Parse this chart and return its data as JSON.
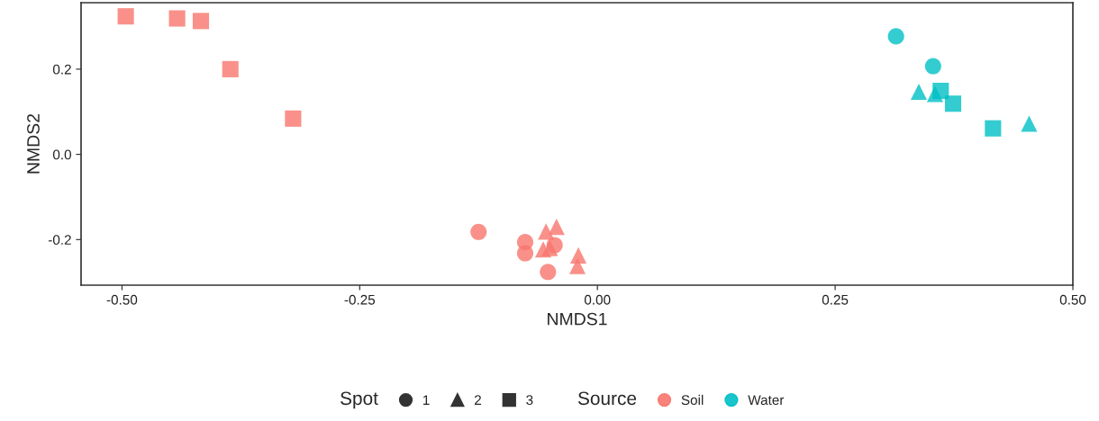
{
  "chart_data": {
    "type": "scatter",
    "xlabel": "NMDS1",
    "ylabel": "NMDS2",
    "xlim": [
      -0.543,
      0.5
    ],
    "ylim": [
      -0.307,
      0.356
    ],
    "xticks": [
      {
        "value": -0.5,
        "label": "-0.50"
      },
      {
        "value": -0.25,
        "label": "-0.25"
      },
      {
        "value": 0,
        "label": "0.00"
      },
      {
        "value": 0.25,
        "label": "0.25"
      },
      {
        "value": 0.5,
        "label": "0.50"
      }
    ],
    "yticks": [
      {
        "value": -0.2,
        "label": "-0.2"
      },
      {
        "value": 0,
        "label": "0.0"
      },
      {
        "value": 0.2,
        "label": "0.2"
      }
    ],
    "grid": false,
    "legend": "bottom",
    "legend_title": "Source",
    "annotations": [
      "Spot",
      "1",
      "2",
      "3"
    ],
    "series": [
      {
        "name": "Soil",
        "color": "#f8766d",
        "marker": "circle",
        "x": [
          -0.125,
          -0.076,
          -0.076,
          -0.045,
          -0.052
        ],
        "values": [
          -0.182,
          -0.206,
          -0.232,
          -0.213,
          -0.276
        ]
      },
      {
        "color": "#f8766d",
        "marker": "triangle",
        "x": [
          -0.043,
          -0.054,
          -0.057,
          -0.05,
          -0.02,
          -0.021
        ],
        "values": [
          -0.17,
          -0.181,
          -0.223,
          -0.22,
          -0.237,
          -0.262
        ]
      },
      {
        "color": "#f8766d",
        "marker": "square",
        "x": [
          -0.496,
          -0.442,
          -0.417,
          -0.386,
          -0.32
        ],
        "values": [
          0.324,
          0.319,
          0.313,
          0.2,
          0.084
        ]
      },
      {
        "name": "Water",
        "color": "#00bfc4",
        "marker": "circle",
        "x": [
          0.314,
          0.353
        ],
        "values": [
          0.277,
          0.207
        ]
      },
      {
        "color": "#00bfc4",
        "marker": "triangle",
        "x": [
          0.338,
          0.355,
          0.454
        ],
        "values": [
          0.147,
          0.142,
          0.072
        ]
      },
      {
        "color": "#00bfc4",
        "marker": "square",
        "x": [
          0.361,
          0.374,
          0.416
        ],
        "values": [
          0.149,
          0.119,
          0.061
        ]
      }
    ]
  }
}
